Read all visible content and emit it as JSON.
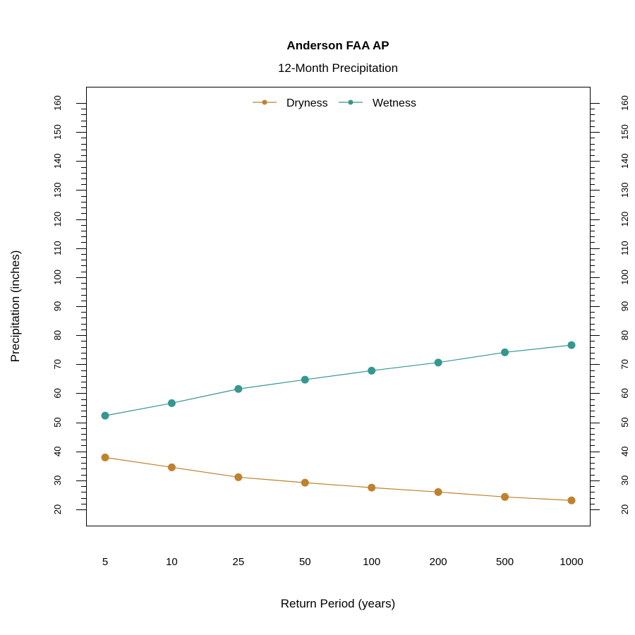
{
  "chart_data": {
    "type": "line",
    "title": "Anderson FAA AP",
    "subtitle": "12-Month Precipitation",
    "xlabel": "Return Period (years)",
    "ylabel": "Precipitation (inches)",
    "categories": [
      "5",
      "10",
      "25",
      "50",
      "100",
      "200",
      "500",
      "1000"
    ],
    "ylim": [
      20,
      160
    ],
    "yticks": [
      20,
      30,
      40,
      50,
      60,
      70,
      80,
      90,
      100,
      110,
      120,
      130,
      140,
      150,
      160
    ],
    "y_minor_step": 2,
    "right_axis_mirrored": true,
    "grid": false,
    "legend_position": "top-center",
    "series": [
      {
        "name": "Dryness",
        "color": "#BF812D",
        "values": [
          37.9,
          34.5,
          31.1,
          29.2,
          27.5,
          26.0,
          24.3,
          23.1
        ]
      },
      {
        "name": "Wetness",
        "color": "#35978F",
        "values": [
          52.3,
          56.6,
          61.5,
          64.7,
          67.8,
          70.6,
          74.1,
          76.6
        ]
      }
    ]
  }
}
